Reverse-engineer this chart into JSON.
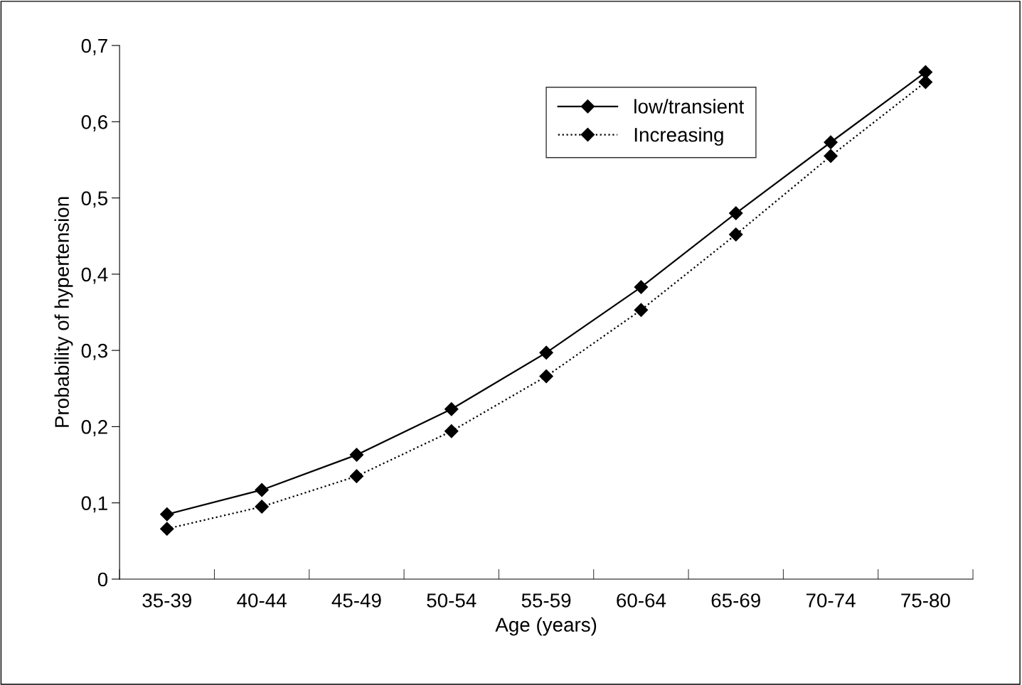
{
  "chart_data": {
    "type": "line",
    "xlabel": "Age (years)",
    "ylabel": "Probability of hypertension",
    "categories": [
      "35-39",
      "40-44",
      "45-49",
      "50-54",
      "55-59",
      "60-64",
      "65-69",
      "70-74",
      "75-80"
    ],
    "series": [
      {
        "name": "low/transient",
        "color": "#000000",
        "line_style": "solid",
        "marker": "diamond",
        "values": [
          0.085,
          0.117,
          0.163,
          0.223,
          0.297,
          0.383,
          0.48,
          0.573,
          0.665
        ]
      },
      {
        "name": "Increasing",
        "color": "#000000",
        "line_style": "dotted",
        "marker": "diamond",
        "values": [
          0.066,
          0.095,
          0.135,
          0.194,
          0.266,
          0.353,
          0.452,
          0.555,
          0.652
        ]
      }
    ],
    "ylim": [
      0,
      0.7
    ],
    "yticks": [
      0,
      {
        "value": 0.1,
        "label": "0,1"
      },
      {
        "value": 0.2,
        "label": "0,2"
      },
      {
        "value": 0.3,
        "label": "0,3"
      },
      {
        "value": 0.4,
        "label": "0,4"
      },
      {
        "value": 0.5,
        "label": "0,5"
      },
      {
        "value": 0.6,
        "label": "0,6"
      },
      {
        "value": 0.7,
        "label": "0,7"
      }
    ],
    "grid": false,
    "legend": "top right"
  }
}
